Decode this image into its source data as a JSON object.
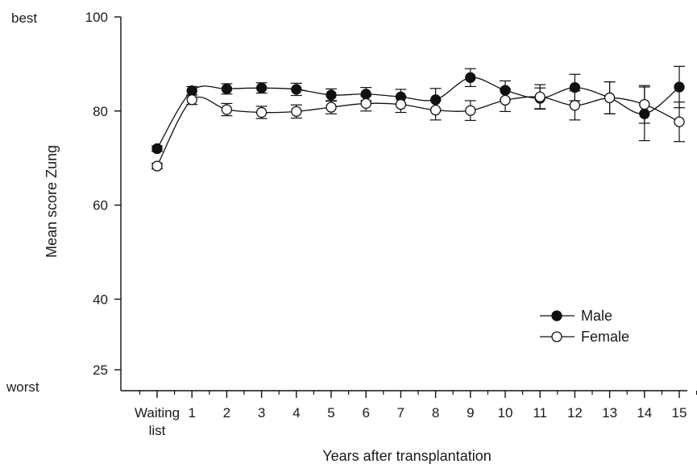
{
  "chart_data": {
    "type": "line",
    "xlabel": "Years after transplantation",
    "ylabel": "Mean score Zung",
    "y_top_note": "best",
    "y_bottom_note": "worst",
    "ylim": [
      22,
      100
    ],
    "y_ticks": [
      25,
      40,
      60,
      80,
      100
    ],
    "categories": [
      "Waiting list",
      "1",
      "2",
      "3",
      "4",
      "5",
      "6",
      "7",
      "8",
      "9",
      "10",
      "11",
      "12",
      "13",
      "14",
      "15"
    ],
    "category_labels": [
      [
        "Waiting",
        "list"
      ],
      [
        "1"
      ],
      [
        "2"
      ],
      [
        "3"
      ],
      [
        "4"
      ],
      [
        "5"
      ],
      [
        "6"
      ],
      [
        "7"
      ],
      [
        "8"
      ],
      [
        "9"
      ],
      [
        "10"
      ],
      [
        "11"
      ],
      [
        "12"
      ],
      [
        "13"
      ],
      [
        "14"
      ],
      [
        "15"
      ]
    ],
    "grid": false,
    "legend_position": "bottom-right",
    "series": [
      {
        "name": "Male",
        "marker": "filled-circle",
        "color": "#111111",
        "values": [
          72.0,
          84.3,
          84.7,
          84.9,
          84.6,
          83.4,
          83.6,
          83.0,
          82.4,
          87.1,
          84.4,
          82.7,
          85.0,
          82.8,
          79.4,
          85.1
        ],
        "error": [
          0.6,
          0.9,
          1.1,
          1.1,
          1.3,
          1.3,
          1.4,
          1.6,
          2.4,
          1.9,
          2.0,
          2.2,
          2.8,
          3.4,
          5.7,
          4.4
        ]
      },
      {
        "name": "Female",
        "marker": "open-circle",
        "color": "#111111",
        "values": [
          68.3,
          82.4,
          80.3,
          79.7,
          79.9,
          80.8,
          81.6,
          81.4,
          80.2,
          80.1,
          82.3,
          83.0,
          81.2,
          82.8,
          81.4,
          77.7
        ],
        "error": [
          0.6,
          1.0,
          1.3,
          1.3,
          1.4,
          1.4,
          1.6,
          1.7,
          2.1,
          2.1,
          2.4,
          2.6,
          3.1,
          3.4,
          4.0,
          4.2
        ]
      }
    ]
  }
}
